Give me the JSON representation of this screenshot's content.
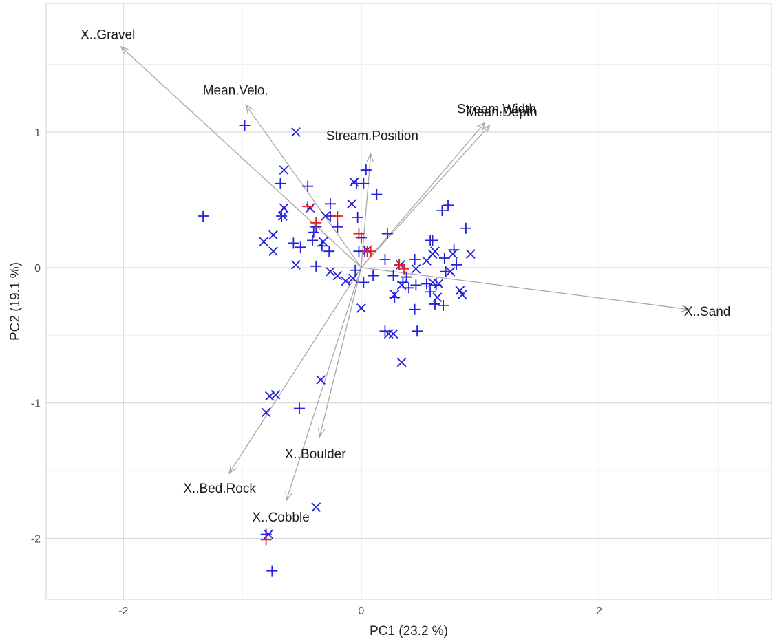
{
  "chart_data": {
    "type": "scatter",
    "title": "",
    "xlabel": "PC1 (23.2 %)",
    "ylabel": "PC2 (19.1 %)",
    "xlim": [
      -2.65,
      3.45
    ],
    "ylim": [
      -2.45,
      1.95
    ],
    "x_ticks": [
      -2,
      0,
      2
    ],
    "x_tick_labels": [
      "-2",
      "0",
      "2"
    ],
    "y_ticks": [
      -2,
      -1,
      0,
      1
    ],
    "y_tick_labels": [
      "-2",
      "-1",
      "0",
      "1"
    ],
    "grid": true,
    "legend": "none",
    "colors": {
      "blue": "#2222dd",
      "red": "#e81e1e",
      "arrow": "#a6a6a6"
    },
    "loadings": [
      {
        "label": "X..Gravel",
        "x": -2.02,
        "y": 1.63
      },
      {
        "label": "Mean.Velo.",
        "x": -0.97,
        "y": 1.2
      },
      {
        "label": "Stream.Position",
        "x": 0.08,
        "y": 0.84
      },
      {
        "label": "Stream.Width",
        "x": 1.04,
        "y": 1.07
      },
      {
        "label": "Mean.Depth",
        "x": 1.08,
        "y": 1.05
      },
      {
        "label": "X..Sand",
        "x": 2.76,
        "y": -0.31
      },
      {
        "label": "X..Boulder",
        "x": -0.35,
        "y": -1.25
      },
      {
        "label": "X..Bed.Rock",
        "x": -1.11,
        "y": -1.52
      },
      {
        "label": "X..Cobble",
        "x": -0.63,
        "y": -1.72
      }
    ],
    "series": [
      {
        "color": "blue",
        "marker": "plus",
        "points": [
          [
            -1.33,
            0.38
          ],
          [
            -0.98,
            1.05
          ],
          [
            -0.68,
            0.62
          ],
          [
            -0.67,
            0.38
          ],
          [
            -0.45,
            0.6
          ],
          [
            -0.57,
            0.18
          ],
          [
            -0.51,
            0.15
          ],
          [
            -0.4,
            0.26
          ],
          [
            -0.38,
            0.3
          ],
          [
            -0.41,
            0.2
          ],
          [
            -0.33,
            0.16
          ],
          [
            -0.27,
            0.12
          ],
          [
            -0.38,
            0.01
          ],
          [
            -0.26,
            0.47
          ],
          [
            -0.26,
            0.38
          ],
          [
            -0.2,
            0.3
          ],
          [
            -0.04,
            0.62
          ],
          [
            0.02,
            0.62
          ],
          [
            0.13,
            0.54
          ],
          [
            0.04,
            0.72
          ],
          [
            -0.03,
            0.37
          ],
          [
            0.0,
            0.22
          ],
          [
            -0.02,
            0.12
          ],
          [
            0.03,
            0.12
          ],
          [
            -0.05,
            -0.02
          ],
          [
            0.22,
            0.25
          ],
          [
            0.2,
            0.06
          ],
          [
            0.1,
            -0.06
          ],
          [
            0.27,
            -0.06
          ],
          [
            0.28,
            -0.22
          ],
          [
            0.32,
            0.02
          ],
          [
            0.45,
            0.06
          ],
          [
            0.46,
            -0.13
          ],
          [
            0.4,
            -0.15
          ],
          [
            0.38,
            -0.07
          ],
          [
            0.35,
            -0.11
          ],
          [
            0.45,
            -0.31
          ],
          [
            0.55,
            -0.12
          ],
          [
            0.63,
            -0.13
          ],
          [
            0.58,
            -0.18
          ],
          [
            0.62,
            -0.27
          ],
          [
            0.69,
            -0.28
          ],
          [
            0.71,
            -0.03
          ],
          [
            0.7,
            0.07
          ],
          [
            0.78,
            0.13
          ],
          [
            0.8,
            0.02
          ],
          [
            0.68,
            0.42
          ],
          [
            0.73,
            0.46
          ],
          [
            0.88,
            0.29
          ],
          [
            0.58,
            0.2
          ],
          [
            0.6,
            0.2
          ],
          [
            0.47,
            -0.47
          ],
          [
            0.2,
            -0.47
          ],
          [
            0.02,
            -0.11
          ],
          [
            -0.52,
            -1.04
          ],
          [
            -0.75,
            -2.24
          ],
          [
            -0.8,
            -1.97
          ]
        ]
      },
      {
        "color": "blue",
        "marker": "x",
        "points": [
          [
            -0.55,
            1.0
          ],
          [
            -0.65,
            0.72
          ],
          [
            -0.65,
            0.44
          ],
          [
            -0.66,
            0.38
          ],
          [
            -0.82,
            0.19
          ],
          [
            -0.74,
            0.24
          ],
          [
            -0.74,
            0.12
          ],
          [
            -0.55,
            0.02
          ],
          [
            -0.43,
            0.44
          ],
          [
            -0.32,
            0.19
          ],
          [
            -0.3,
            0.38
          ],
          [
            -0.2,
            -0.06
          ],
          [
            -0.26,
            -0.03
          ],
          [
            -0.13,
            -0.1
          ],
          [
            -0.07,
            -0.08
          ],
          [
            -0.08,
            0.47
          ],
          [
            -0.06,
            0.63
          ],
          [
            0.05,
            0.13
          ],
          [
            0.0,
            -0.3
          ],
          [
            0.28,
            -0.2
          ],
          [
            0.33,
            0.02
          ],
          [
            0.34,
            -0.13
          ],
          [
            0.46,
            -0.01
          ],
          [
            0.55,
            0.05
          ],
          [
            0.6,
            0.1
          ],
          [
            0.62,
            0.12
          ],
          [
            0.64,
            -0.22
          ],
          [
            0.6,
            -0.11
          ],
          [
            0.65,
            -0.12
          ],
          [
            0.75,
            -0.03
          ],
          [
            0.77,
            0.1
          ],
          [
            0.83,
            -0.17
          ],
          [
            0.85,
            -0.2
          ],
          [
            0.92,
            0.1
          ],
          [
            0.27,
            -0.49
          ],
          [
            0.23,
            -0.49
          ],
          [
            0.34,
            -0.7
          ],
          [
            -0.8,
            -1.07
          ],
          [
            -0.77,
            -0.95
          ],
          [
            -0.72,
            -0.94
          ],
          [
            -0.34,
            -0.83
          ],
          [
            -0.38,
            -1.77
          ],
          [
            -0.78,
            -1.97
          ]
        ]
      },
      {
        "color": "red",
        "marker": "plus",
        "points": [
          [
            -0.45,
            0.45
          ],
          [
            -0.38,
            0.33
          ],
          [
            -0.2,
            0.38
          ],
          [
            -0.02,
            0.25
          ],
          [
            0.05,
            0.12
          ],
          [
            0.08,
            0.12
          ],
          [
            0.32,
            0.02
          ],
          [
            0.36,
            -0.01
          ],
          [
            -0.8,
            -2.01
          ]
        ]
      }
    ]
  }
}
